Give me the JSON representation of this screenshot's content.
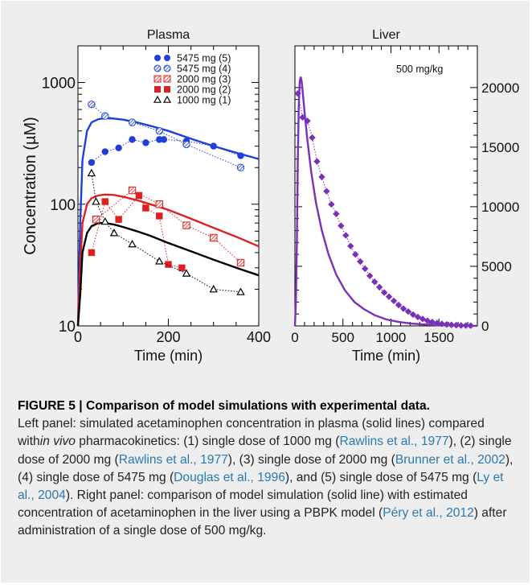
{
  "chart_data": [
    {
      "type": "line",
      "title": "Plasma",
      "xlabel": "Time (min)",
      "ylabel": "Concentration (µM)",
      "xlim": [
        0,
        400
      ],
      "ylim": [
        10,
        2000
      ],
      "yscale": "log",
      "xticks": [
        "0",
        "200",
        "400"
      ],
      "yticks": [
        "10",
        "100",
        "1000"
      ],
      "legend_position": "top-right",
      "grid": false,
      "simulations": [
        {
          "color": "#1f3fd6",
          "x": [
            0,
            5,
            10,
            20,
            30,
            45,
            60,
            80,
            100,
            130,
            160,
            200,
            250,
            300,
            350,
            400
          ],
          "y": [
            10,
            70,
            230,
            400,
            470,
            500,
            510,
            505,
            495,
            470,
            440,
            400,
            345,
            300,
            265,
            235
          ]
        },
        {
          "color": "#e02020",
          "x": [
            0,
            5,
            10,
            20,
            30,
            45,
            60,
            80,
            100,
            130,
            160,
            200,
            250,
            300,
            350,
            400
          ],
          "y": [
            10,
            30,
            70,
            100,
            112,
            118,
            120,
            119,
            115,
            108,
            100,
            90,
            76,
            64,
            54,
            45
          ]
        },
        {
          "color": "#000000",
          "x": [
            0,
            5,
            10,
            20,
            30,
            45,
            60,
            80,
            100,
            130,
            160,
            200,
            250,
            300,
            350,
            400
          ],
          "y": [
            10,
            18,
            40,
            58,
            66,
            70,
            70,
            68,
            65,
            60,
            55,
            48,
            41,
            35,
            30,
            26
          ]
        }
      ],
      "series": [
        {
          "name": "5475 mg (5)",
          "marker": "filled-circle",
          "color": "#1f3fd6",
          "x": [
            30,
            60,
            90,
            120,
            150,
            180,
            190,
            240,
            300,
            360
          ],
          "y": [
            220,
            270,
            290,
            340,
            320,
            340,
            340,
            330,
            300,
            250
          ]
        },
        {
          "name": "5475 mg (4)",
          "marker": "hatched-circle",
          "color": "#1f3fd6",
          "x": [
            30,
            60,
            120,
            180,
            240,
            360
          ],
          "y": [
            660,
            530,
            470,
            400,
            310,
            200
          ]
        },
        {
          "name": "2000 mg (3)",
          "marker": "hatched-square",
          "color": "#e02020",
          "x": [
            40,
            120,
            180,
            240,
            300,
            360
          ],
          "y": [
            75,
            130,
            100,
            67,
            53,
            33
          ]
        },
        {
          "name": "2000 mg (2)",
          "marker": "filled-square",
          "color": "#e02020",
          "x": [
            30,
            60,
            90,
            135,
            150,
            180,
            200,
            230
          ],
          "y": [
            40,
            105,
            75,
            118,
            93,
            80,
            32,
            30
          ]
        },
        {
          "name": "1000 mg (1)",
          "marker": "triangle",
          "color": "#000000",
          "x": [
            30,
            40,
            60,
            80,
            120,
            180,
            240,
            300,
            360
          ],
          "y": [
            180,
            105,
            72,
            58,
            47,
            34,
            27,
            20,
            19
          ]
        }
      ]
    },
    {
      "type": "line",
      "title": "Liver",
      "annotation": "500 mg/kg",
      "xlabel": "Time (min)",
      "ylabel": "",
      "xlim": [
        0,
        1900
      ],
      "ylim": [
        0,
        23500
      ],
      "yscale": "linear",
      "xticks": [
        "0",
        "500",
        "1000",
        "1500"
      ],
      "yticks": [
        "0",
        "5000",
        "10000",
        "15000",
        "20000"
      ],
      "grid": false,
      "simulations": [
        {
          "color": "#7a30b8",
          "x": [
            0,
            10,
            20,
            30,
            40,
            50,
            60,
            70,
            80,
            100,
            130,
            170,
            220,
            280,
            350,
            430,
            520,
            620,
            720,
            830,
            950,
            1080,
            1220,
            1380,
            1550,
            1750,
            1900
          ],
          "y": [
            0,
            2000,
            7000,
            14000,
            18500,
            20500,
            20900,
            20500,
            19700,
            18000,
            15600,
            12900,
            10300,
            8000,
            6000,
            4300,
            3000,
            2000,
            1400,
            900,
            550,
            330,
            190,
            100,
            50,
            20,
            10
          ]
        }
      ],
      "series": [
        {
          "name": "",
          "marker": "diamond",
          "color": "#7a30b8",
          "x": [
            30,
            80,
            130,
            180,
            230,
            280,
            330,
            380,
            430,
            480,
            530,
            580,
            630,
            680,
            730,
            780,
            830,
            880,
            930,
            980,
            1030,
            1080,
            1130,
            1180,
            1230,
            1280,
            1330,
            1380,
            1430,
            1480,
            1530,
            1580,
            1630,
            1680,
            1730,
            1780,
            1830
          ],
          "y": [
            19500,
            17500,
            17200,
            15800,
            13800,
            12500,
            11300,
            10200,
            9400,
            8400,
            7600,
            6700,
            6000,
            5400,
            4800,
            4200,
            3700,
            3250,
            2800,
            2450,
            2100,
            1750,
            1450,
            1200,
            950,
            750,
            580,
            430,
            320,
            240,
            170,
            120,
            90,
            60,
            40,
            30,
            20
          ]
        }
      ]
    }
  ],
  "caption": {
    "title": "FIGURE 5 | Comparison of model simulations with experimental data.",
    "p1": "Left panel: simulated acetaminophen concentration in plasma (solid lines) compared with",
    "p1_italic": "in vivo",
    "p2": " pharmacokinetics: (1) single dose of 1000 mg (",
    "c1": "Rawlins et al., 1977",
    "p3": "), (2) single dose of 2000 mg (",
    "c2": "Rawlins et al., 1977",
    "p4": "), (3) single dose of 2000 mg (",
    "c3": "Brunner et al., 2002",
    "p5": "), (4) single dose of 5475 mg (",
    "c4": "Douglas et al., 1996",
    "p6": "), and (5) single dose of 5475 mg (",
    "c5": "Ly et al., 2004",
    "p7": "). Right panel: comparison of model simulation (solid line) with estimated concentration of acetaminophen in the liver using a PBPK model (",
    "c6": "Péry et al., 2012",
    "p8": ") after administration of a single dose of 500 mg/kg."
  }
}
